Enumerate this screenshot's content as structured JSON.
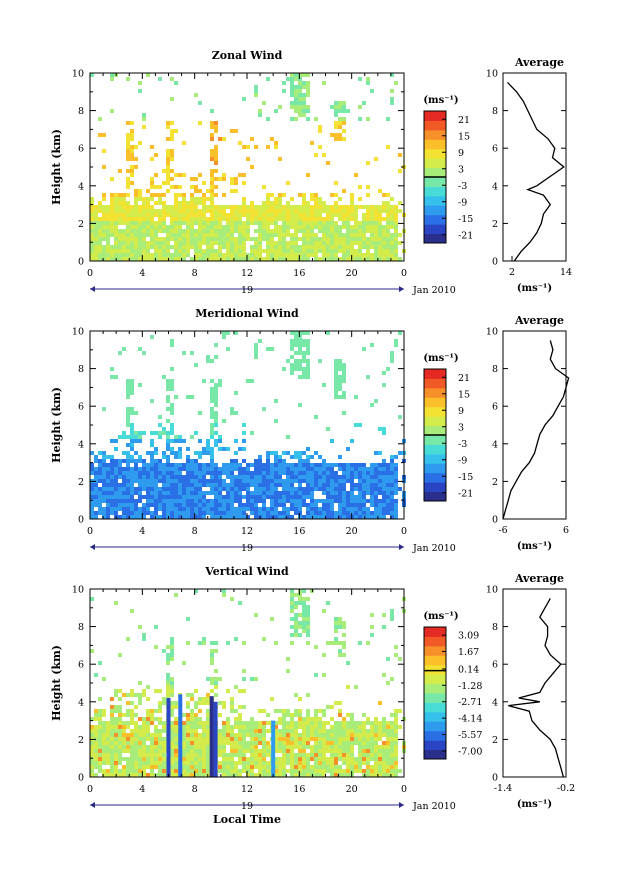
{
  "figure": {
    "date_label": "Jan 2010",
    "day_label": "19",
    "x_axis_label": "Local Time",
    "y_axis_label": "Height (km)",
    "unit_label": "(ms⁻¹)",
    "average_title": "Average"
  },
  "colors": {
    "scale": [
      "#2b2f8c",
      "#2a45c4",
      "#2a6fe6",
      "#2f9bef",
      "#36c1ec",
      "#49dcd6",
      "#78e8a8",
      "#a8ec7a",
      "#d3ec4b",
      "#f3e232",
      "#fbbf2a",
      "#f8902a",
      "#f15a26",
      "#e42a22"
    ]
  },
  "chart_data": [
    {
      "type": "heatmap",
      "title": "Zonal Wind",
      "xlabel": "",
      "ylabel": "Height (km)",
      "xlim": [
        0,
        24
      ],
      "ylim": [
        0,
        10
      ],
      "xticks": [
        "0",
        "4",
        "8",
        "12",
        "16",
        "20",
        "0"
      ],
      "yticks": [
        "0",
        "2",
        "4",
        "6",
        "8",
        "10"
      ],
      "colorbar": {
        "unit": "(ms⁻¹)",
        "ticks": [
          "21",
          "15",
          "9",
          "3",
          "-3",
          "-9",
          "-15",
          "-21"
        ],
        "range": [
          -24,
          24
        ]
      },
      "average_profile": {
        "title": "Average",
        "xlim": [
          0,
          14
        ],
        "xticks": [
          "2",
          "14"
        ],
        "xlabel": "(ms⁻¹)",
        "height_km": [
          0.0,
          0.5,
          1.0,
          1.5,
          2.0,
          2.5,
          3.0,
          3.5,
          3.8,
          4.0,
          4.5,
          5.0,
          5.5,
          6.0,
          6.5,
          7.0,
          7.5,
          8.0,
          8.5,
          9.0,
          9.5
        ],
        "value": [
          2.5,
          4.0,
          6.0,
          7.5,
          8.5,
          9.0,
          10.5,
          9.0,
          5.5,
          7.5,
          10.5,
          13.5,
          11.0,
          11.5,
          10.0,
          7.5,
          6.5,
          5.5,
          4.5,
          3.0,
          1.0
        ]
      }
    },
    {
      "type": "heatmap",
      "title": "Meridional Wind",
      "xlabel": "",
      "ylabel": "Height (km)",
      "xlim": [
        0,
        24
      ],
      "ylim": [
        0,
        10
      ],
      "xticks": [
        "0",
        "4",
        "8",
        "12",
        "16",
        "20",
        "0"
      ],
      "yticks": [
        "0",
        "2",
        "4",
        "6",
        "8",
        "10"
      ],
      "colorbar": {
        "unit": "(ms⁻¹)",
        "ticks": [
          "21",
          "15",
          "9",
          "3",
          "-3",
          "-9",
          "-15",
          "-21"
        ],
        "range": [
          -24,
          24
        ]
      },
      "average_profile": {
        "title": "Average",
        "xlim": [
          -6,
          6
        ],
        "xticks": [
          "-6",
          "6"
        ],
        "xlabel": "(ms⁻¹)",
        "height_km": [
          0.0,
          0.5,
          1.0,
          1.5,
          2.0,
          2.5,
          3.0,
          3.5,
          4.0,
          4.5,
          5.0,
          5.5,
          6.0,
          6.5,
          7.0,
          7.5,
          8.0,
          8.5,
          9.0,
          9.5
        ],
        "value": [
          -6.0,
          -5.5,
          -5.0,
          -4.5,
          -3.5,
          -2.5,
          -1.0,
          0.0,
          0.5,
          1.0,
          2.0,
          3.5,
          4.5,
          5.5,
          6.0,
          6.5,
          4.0,
          3.0,
          3.5,
          3.0
        ]
      }
    },
    {
      "type": "heatmap",
      "title": "Vertical Wind",
      "xlabel": "Local Time",
      "ylabel": "Height (km)",
      "xlim": [
        0,
        24
      ],
      "ylim": [
        0,
        10
      ],
      "xticks": [
        "0",
        "4",
        "8",
        "12",
        "16",
        "20",
        "0"
      ],
      "yticks": [
        "0",
        "2",
        "4",
        "6",
        "8",
        "10"
      ],
      "colorbar": {
        "unit": "(ms⁻¹)",
        "ticks": [
          "3.09",
          "1.67",
          "0.14",
          "-1.28",
          "-2.71",
          "-4.14",
          "-5.57",
          "-7.00"
        ],
        "range": [
          -7.7,
          3.8
        ]
      },
      "average_profile": {
        "title": "Average",
        "xlim": [
          -1.4,
          -0.2
        ],
        "xticks": [
          "-1.4",
          "-0.2"
        ],
        "xlabel": "(ms⁻¹)",
        "height_km": [
          0.0,
          0.5,
          1.0,
          1.5,
          2.0,
          2.5,
          3.0,
          3.5,
          3.8,
          4.0,
          4.2,
          4.5,
          5.0,
          5.5,
          6.0,
          6.5,
          7.0,
          7.5,
          8.0,
          8.5,
          9.0,
          9.5
        ],
        "value": [
          -0.25,
          -0.3,
          -0.35,
          -0.4,
          -0.5,
          -0.7,
          -0.85,
          -0.9,
          -1.3,
          -0.7,
          -1.1,
          -0.7,
          -0.6,
          -0.45,
          -0.3,
          -0.5,
          -0.6,
          -0.55,
          -0.55,
          -0.7,
          -0.6,
          -0.5
        ]
      }
    }
  ]
}
